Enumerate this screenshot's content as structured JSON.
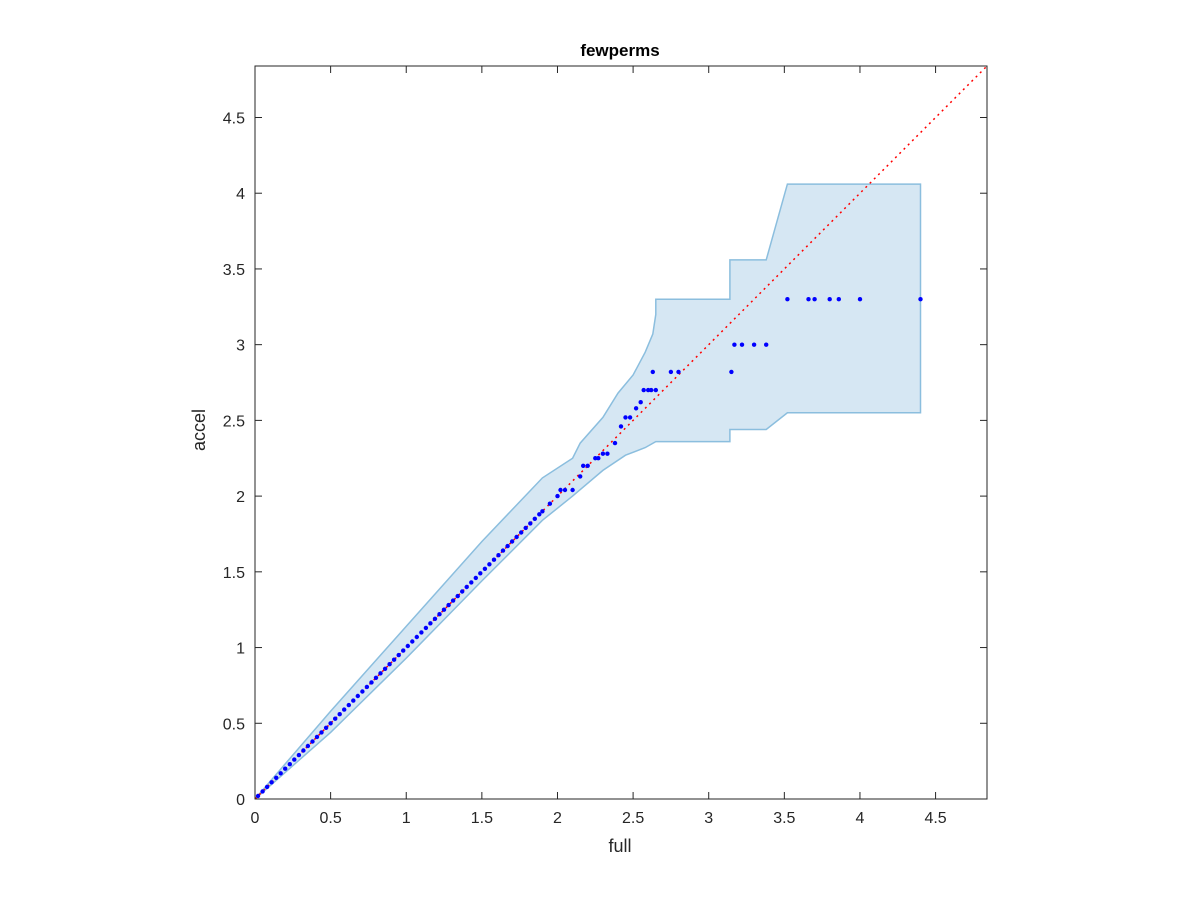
{
  "chart_data": {
    "type": "scatter",
    "title": "fewperms",
    "xlabel": "full",
    "ylabel": "accel",
    "xlim": [
      0,
      4.84
    ],
    "ylim": [
      0,
      4.84
    ],
    "xticks": [
      0,
      0.5,
      1,
      1.5,
      2,
      2.5,
      3,
      3.5,
      4,
      4.5
    ],
    "yticks": [
      0,
      0.5,
      1,
      1.5,
      2,
      2.5,
      3,
      3.5,
      4,
      4.5
    ],
    "xtick_labels": [
      "0",
      "0.5",
      "1",
      "1.5",
      "2",
      "2.5",
      "3",
      "3.5",
      "4",
      "4.5"
    ],
    "ytick_labels": [
      "0",
      "0.5",
      "1",
      "1.5",
      "2",
      "2.5",
      "3",
      "3.5",
      "4",
      "4.5"
    ],
    "grid": false,
    "colors": {
      "points": "#0000ff",
      "reference_line": "#ff0000",
      "band_fill": "#d6e7f3",
      "band_edge": "#8bbede",
      "axes": "#262626"
    },
    "reference_line": {
      "x": [
        0,
        4.84
      ],
      "y": [
        0,
        4.84
      ],
      "style": "dotted"
    },
    "band": {
      "upper": [
        [
          0,
          0
        ],
        [
          0.5,
          0.58
        ],
        [
          1,
          1.14
        ],
        [
          1.5,
          1.7
        ],
        [
          1.9,
          2.12
        ],
        [
          2.1,
          2.25
        ],
        [
          2.15,
          2.35
        ],
        [
          2.3,
          2.52
        ],
        [
          2.4,
          2.68
        ],
        [
          2.5,
          2.8
        ],
        [
          2.58,
          2.95
        ],
        [
          2.63,
          3.07
        ],
        [
          2.65,
          3.2
        ],
        [
          2.65,
          3.3
        ],
        [
          3.14,
          3.3
        ],
        [
          3.14,
          3.56
        ],
        [
          3.38,
          3.56
        ],
        [
          3.52,
          4.06
        ],
        [
          4.4,
          4.06
        ]
      ],
      "lower": [
        [
          4.4,
          2.55
        ],
        [
          3.52,
          2.55
        ],
        [
          3.38,
          2.44
        ],
        [
          3.14,
          2.44
        ],
        [
          3.14,
          2.36
        ],
        [
          2.65,
          2.36
        ],
        [
          2.58,
          2.32
        ],
        [
          2.45,
          2.27
        ],
        [
          2.3,
          2.17
        ],
        [
          2.1,
          2.0
        ],
        [
          1.9,
          1.84
        ],
        [
          1.5,
          1.44
        ],
        [
          1,
          0.93
        ],
        [
          0.5,
          0.44
        ],
        [
          0,
          0
        ]
      ]
    },
    "series": [
      {
        "x": [
          0.02,
          0.05,
          0.08,
          0.11,
          0.14,
          0.17,
          0.2,
          0.23,
          0.26,
          0.29,
          0.32,
          0.35,
          0.38,
          0.41,
          0.44,
          0.47,
          0.5,
          0.53,
          0.56,
          0.59,
          0.62,
          0.65,
          0.68,
          0.71,
          0.74,
          0.77,
          0.8,
          0.83,
          0.86,
          0.89,
          0.92,
          0.95,
          0.98,
          1.01,
          1.04,
          1.07,
          1.1,
          1.13,
          1.16,
          1.19,
          1.22,
          1.25,
          1.28,
          1.31,
          1.34,
          1.37,
          1.4,
          1.43,
          1.46,
          1.49,
          1.52,
          1.55,
          1.58,
          1.61,
          1.64,
          1.67,
          1.7,
          1.73,
          1.76,
          1.79,
          1.82,
          1.85,
          1.88,
          1.9,
          1.95,
          2.0,
          2.02,
          2.05,
          2.1,
          2.15,
          2.17,
          2.2,
          2.25,
          2.27,
          2.3,
          2.33,
          2.38,
          2.42,
          2.45,
          2.48,
          2.52,
          2.55,
          2.57,
          2.6,
          2.62,
          2.63,
          2.65,
          2.75,
          2.8,
          3.15,
          3.17,
          3.22,
          3.3,
          3.38,
          3.52,
          3.66,
          3.7,
          3.8,
          3.86,
          4.0,
          4.4
        ],
        "y": [
          0.02,
          0.05,
          0.08,
          0.11,
          0.14,
          0.17,
          0.2,
          0.23,
          0.26,
          0.29,
          0.32,
          0.35,
          0.38,
          0.41,
          0.44,
          0.47,
          0.5,
          0.53,
          0.56,
          0.59,
          0.62,
          0.65,
          0.68,
          0.71,
          0.74,
          0.77,
          0.8,
          0.83,
          0.86,
          0.89,
          0.92,
          0.95,
          0.98,
          1.01,
          1.04,
          1.07,
          1.1,
          1.13,
          1.16,
          1.19,
          1.22,
          1.25,
          1.28,
          1.31,
          1.34,
          1.37,
          1.4,
          1.43,
          1.46,
          1.49,
          1.52,
          1.55,
          1.58,
          1.61,
          1.64,
          1.67,
          1.7,
          1.73,
          1.76,
          1.79,
          1.82,
          1.85,
          1.88,
          1.9,
          1.95,
          2.0,
          2.04,
          2.04,
          2.04,
          2.13,
          2.2,
          2.2,
          2.25,
          2.25,
          2.28,
          2.28,
          2.35,
          2.46,
          2.52,
          2.52,
          2.58,
          2.62,
          2.7,
          2.7,
          2.7,
          2.82,
          2.7,
          2.82,
          2.82,
          2.82,
          3.0,
          3.0,
          3.0,
          3.0,
          3.3,
          3.3,
          3.3,
          3.3,
          3.3,
          3.3,
          3.3
        ]
      }
    ]
  }
}
